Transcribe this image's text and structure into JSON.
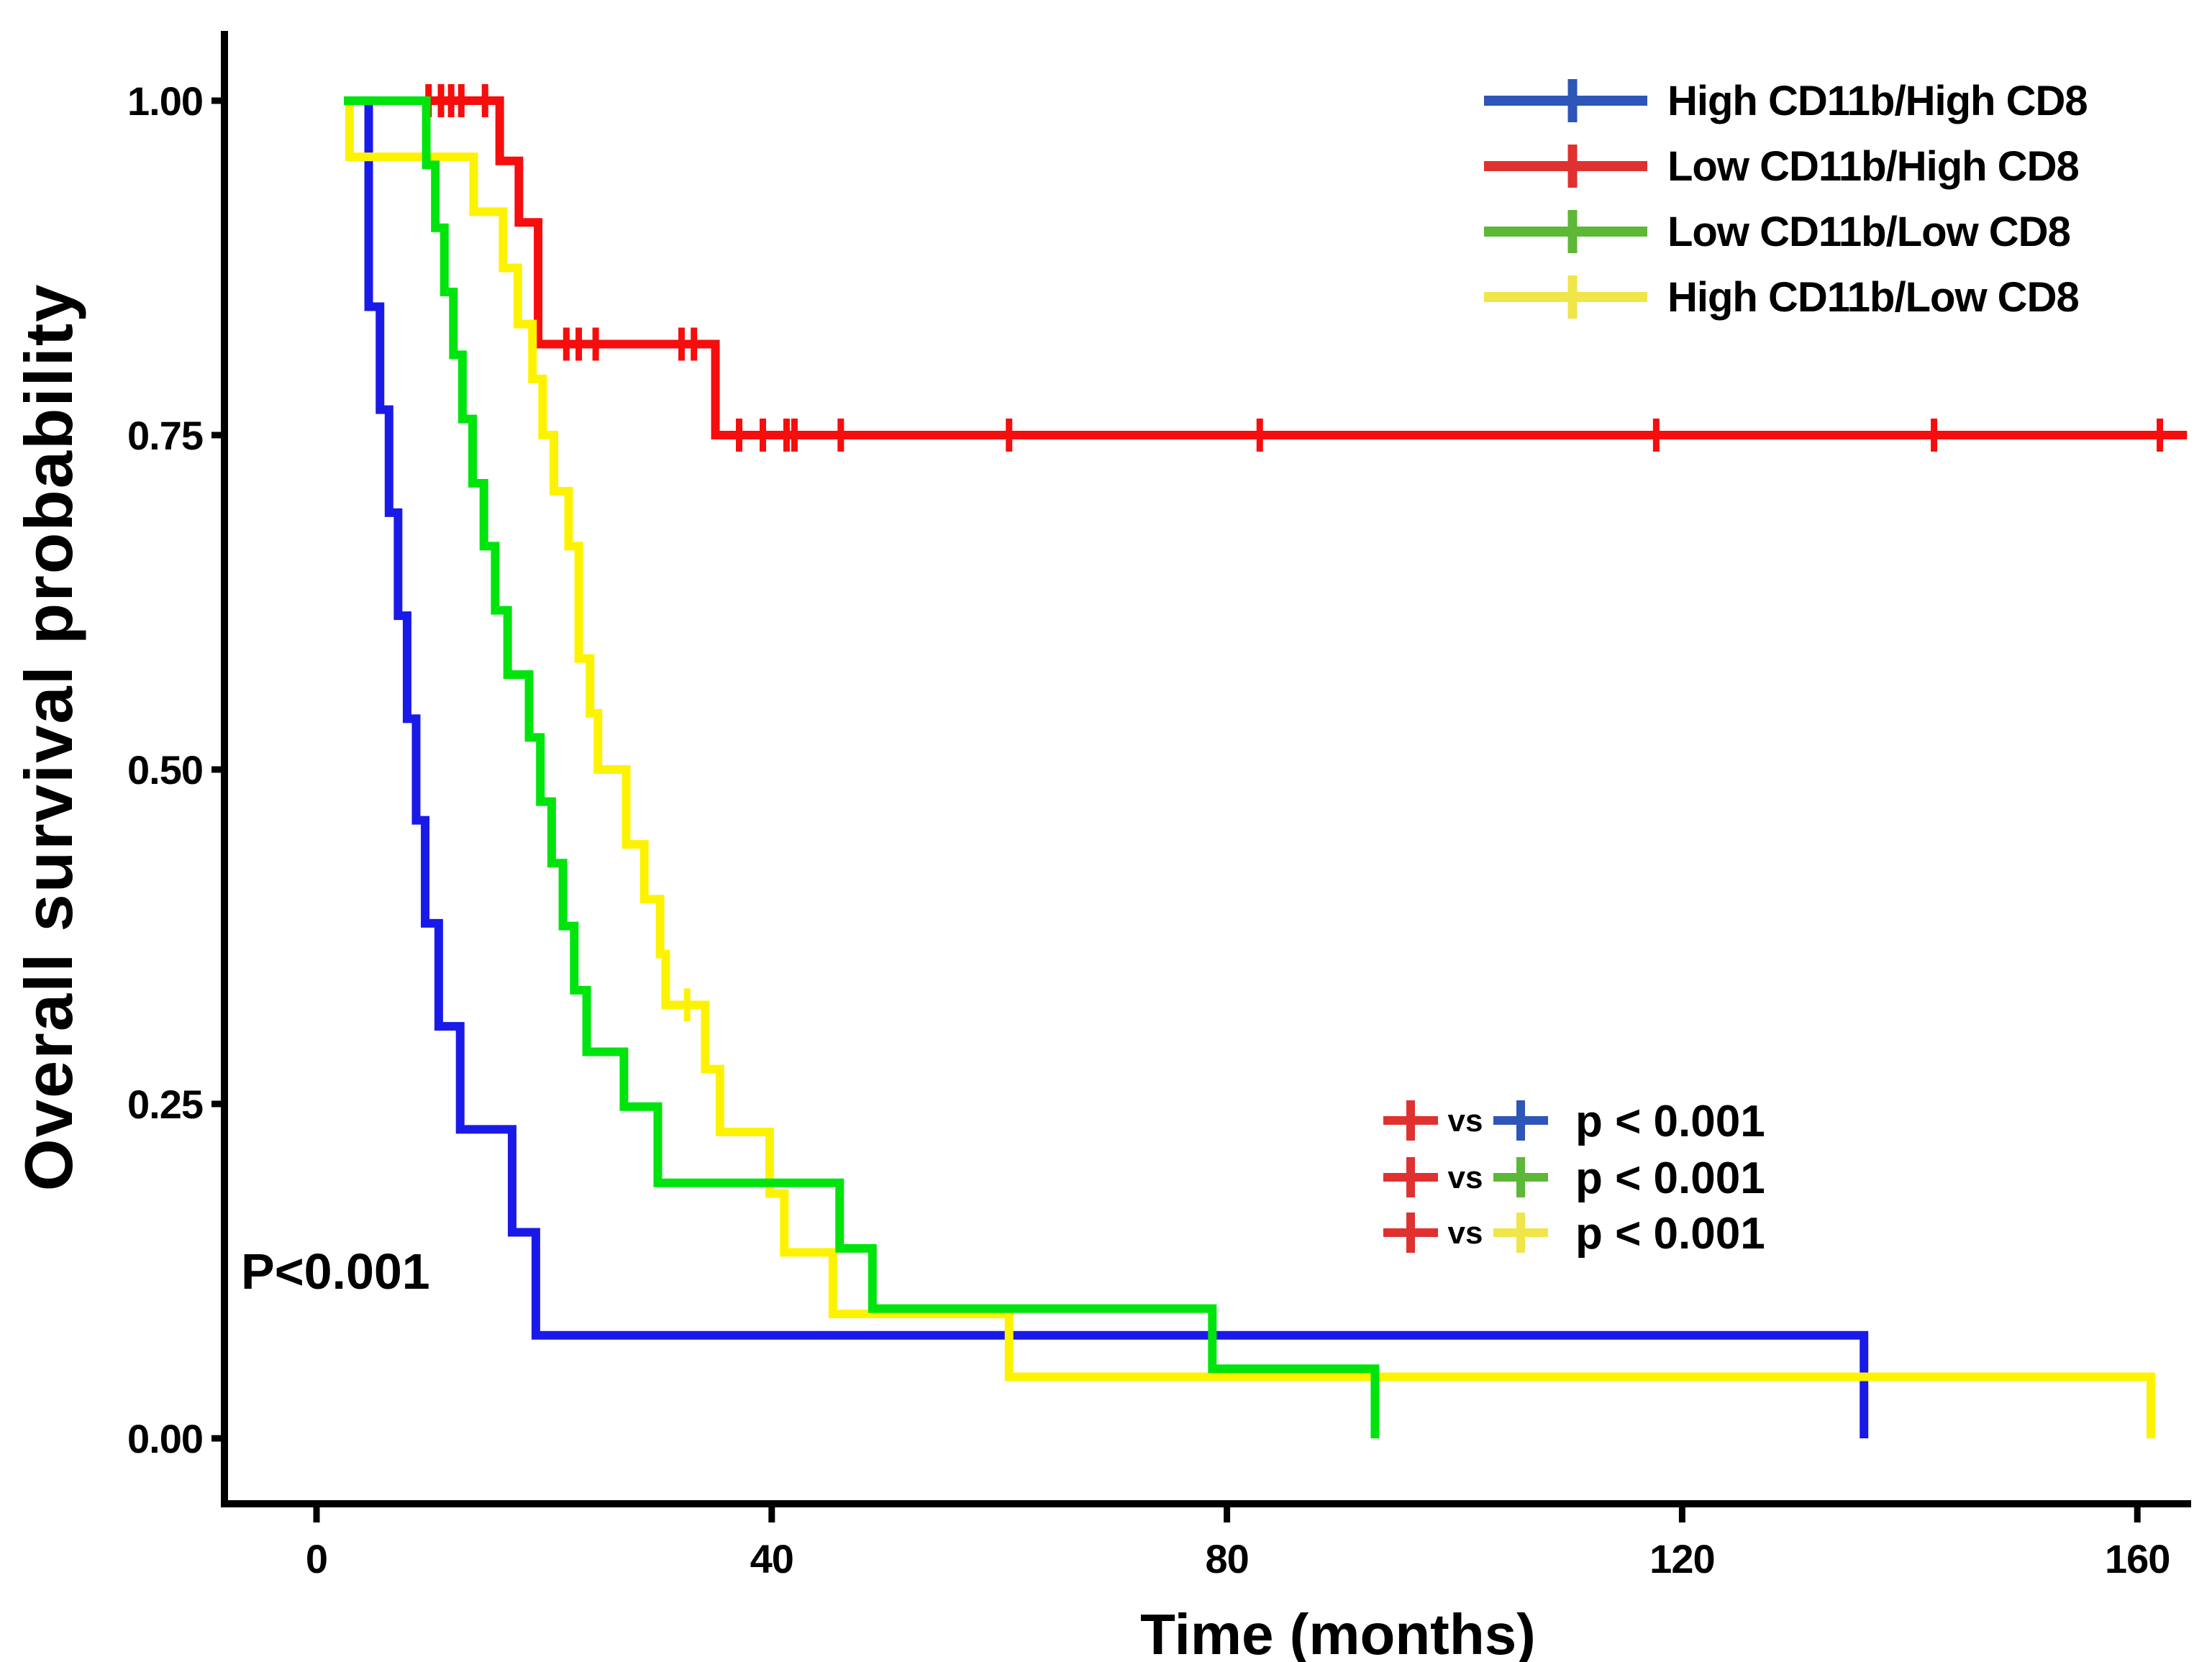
{
  "chart_data": {
    "type": "line",
    "subtype": "kaplan-meier-step",
    "title": "",
    "xlabel": "Time (months)",
    "ylabel": "Overall survival probability",
    "annotation": "P<0.001",
    "x_ticks": [
      0,
      40,
      80,
      120,
      160
    ],
    "y_ticks": [
      {
        "value": 1.0,
        "label": "1.00"
      },
      {
        "value": 0.75,
        "label": "0.75"
      },
      {
        "value": 0.5,
        "label": "0.50"
      },
      {
        "value": 0.25,
        "label": "0.25"
      },
      {
        "value": 0.0,
        "label": "0.00"
      }
    ],
    "xlim": [
      0,
      164
    ],
    "ylim": [
      0.0,
      1.0
    ],
    "grid": false,
    "legend_position": "top-right",
    "series": [
      {
        "name": "High CD11b/High CD8",
        "curve_color": "#1A1AE8",
        "legend_color": "#2E55B8",
        "steps": [
          [
            0,
            1.0
          ],
          [
            2.2,
            0.846
          ],
          [
            3.2,
            0.769
          ],
          [
            4.0,
            0.692
          ],
          [
            4.8,
            0.615
          ],
          [
            5.6,
            0.538
          ],
          [
            6.4,
            0.462
          ],
          [
            7.2,
            0.385
          ],
          [
            8.4,
            0.308
          ],
          [
            10.3,
            0.231
          ],
          [
            14.9,
            0.154
          ],
          [
            17.0,
            0.077
          ],
          [
            134.6,
            0.0
          ]
        ],
        "censors": []
      },
      {
        "name": "Low CD11b/High CD8",
        "curve_color": "#F60D0D",
        "legend_color": "#E03131",
        "steps": [
          [
            0,
            1.0
          ],
          [
            13.8,
            0.955
          ],
          [
            15.5,
            0.909
          ],
          [
            17.2,
            0.818
          ],
          [
            32.9,
            0.75
          ]
        ],
        "tail_to": 163.2,
        "censors": [
          [
            7.5,
            1.0
          ],
          [
            8.6,
            1.0
          ],
          [
            9.5,
            1.0
          ],
          [
            10.4,
            1.0
          ],
          [
            12.5,
            1.0
          ],
          [
            19.7,
            0.818
          ],
          [
            20.8,
            0.818
          ],
          [
            22.3,
            0.818
          ],
          [
            29.9,
            0.818
          ],
          [
            31.0,
            0.818
          ],
          [
            35.0,
            0.75
          ],
          [
            37.1,
            0.75
          ],
          [
            39.2,
            0.75
          ],
          [
            39.9,
            0.75
          ],
          [
            44.0,
            0.75
          ],
          [
            58.9,
            0.75
          ],
          [
            81.1,
            0.75
          ],
          [
            116.2,
            0.75
          ],
          [
            140.8,
            0.75
          ],
          [
            160.8,
            0.75
          ]
        ]
      },
      {
        "name": "Low CD11b/Low CD8",
        "curve_color": "#00E40E",
        "legend_color": "#5CB836",
        "steps": [
          [
            0,
            1.0
          ],
          [
            7.3,
            0.952
          ],
          [
            8.1,
            0.905
          ],
          [
            8.9,
            0.857
          ],
          [
            9.7,
            0.81
          ],
          [
            10.5,
            0.762
          ],
          [
            11.4,
            0.714
          ],
          [
            12.4,
            0.667
          ],
          [
            13.4,
            0.619
          ],
          [
            14.5,
            0.571
          ],
          [
            16.4,
            0.524
          ],
          [
            17.4,
            0.476
          ],
          [
            18.4,
            0.43
          ],
          [
            19.4,
            0.383
          ],
          [
            20.4,
            0.335
          ],
          [
            21.5,
            0.289
          ],
          [
            24.8,
            0.248
          ],
          [
            27.8,
            0.191
          ],
          [
            43.9,
            0.142
          ],
          [
            46.8,
            0.097
          ],
          [
            76.9,
            0.052
          ],
          [
            91.3,
            0.0
          ]
        ],
        "censors": []
      },
      {
        "name": "High CD11b/Low CD8",
        "curve_color": "#FDF300",
        "legend_color": "#F0E549",
        "steps": [
          [
            0,
            1.0
          ],
          [
            0.5,
            0.958
          ],
          [
            11.5,
            0.917
          ],
          [
            14.1,
            0.875
          ],
          [
            15.4,
            0.833
          ],
          [
            16.7,
            0.792
          ],
          [
            17.6,
            0.75
          ],
          [
            18.6,
            0.708
          ],
          [
            19.9,
            0.667
          ],
          [
            20.8,
            0.583
          ],
          [
            21.8,
            0.542
          ],
          [
            22.5,
            0.5
          ],
          [
            25.0,
            0.444
          ],
          [
            26.6,
            0.403
          ],
          [
            28.0,
            0.362
          ],
          [
            28.5,
            0.324
          ],
          [
            32.0,
            0.276
          ],
          [
            33.3,
            0.229
          ],
          [
            37.7,
            0.183
          ],
          [
            39.0,
            0.139
          ],
          [
            43.3,
            0.093
          ],
          [
            58.9,
            0.046
          ],
          [
            160.0,
            0.0
          ]
        ],
        "censors": [
          [
            30.4,
            0.324
          ]
        ]
      }
    ],
    "comparisons": [
      {
        "left": "Low CD11b/High CD8",
        "right": "High CD11b/High CD8",
        "vs": "vs",
        "label": "p < 0.001"
      },
      {
        "left": "Low CD11b/High CD8",
        "right": "Low CD11b/Low CD8",
        "vs": "vs",
        "label": "p < 0.001"
      },
      {
        "left": "Low CD11b/High CD8",
        "right": "High CD11b/Low CD8",
        "vs": "vs",
        "label": "p < 0.001"
      }
    ]
  }
}
